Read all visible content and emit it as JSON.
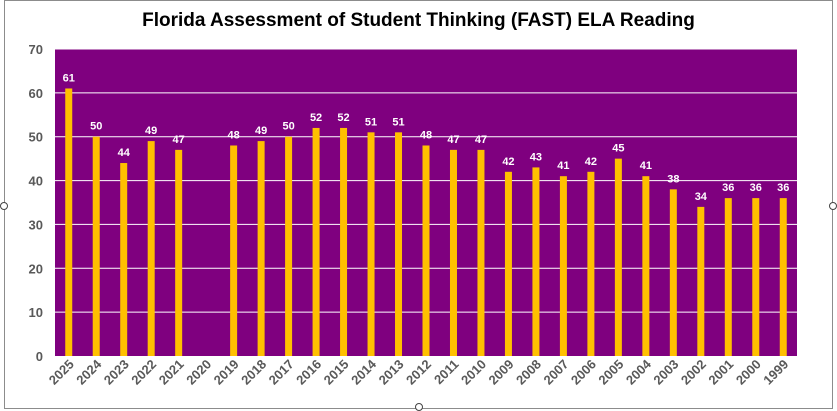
{
  "colors": {
    "plot_background": "#7f007f",
    "bar": "#ffc000",
    "gridline": "#ffffff",
    "label_text": "#ffffff",
    "axis_text": "#595959",
    "frame_border": "#8c8c8c"
  },
  "chart_data": {
    "type": "bar",
    "title": "Florida Assessment of Student Thinking (FAST) ELA Reading",
    "xlabel": "",
    "ylabel": "",
    "ylim": [
      0,
      70
    ],
    "yticks": [
      0,
      10,
      20,
      30,
      40,
      50,
      60,
      70
    ],
    "grid": true,
    "legend": "none",
    "categories": [
      "2025",
      "2024",
      "2023",
      "2022",
      "2021",
      "2020",
      "2019",
      "2018",
      "2017",
      "2016",
      "2015",
      "2014",
      "2013",
      "2012",
      "2011",
      "2010",
      "2009",
      "2008",
      "2007",
      "2006",
      "2005",
      "2004",
      "2003",
      "2002",
      "2001",
      "2000",
      "1999"
    ],
    "values": [
      61,
      50,
      44,
      49,
      47,
      null,
      48,
      49,
      50,
      52,
      52,
      51,
      51,
      48,
      47,
      47,
      42,
      43,
      41,
      42,
      45,
      41,
      38,
      34,
      36,
      36,
      36
    ],
    "data_labels": [
      "61",
      "50",
      "44",
      "49",
      "47",
      "",
      "48",
      "49",
      "50",
      "52",
      "52",
      "51",
      "51",
      "48",
      "47",
      "47",
      "42",
      "43",
      "41",
      "42",
      "45",
      "41",
      "38",
      "34",
      "36",
      "36",
      "36"
    ]
  }
}
